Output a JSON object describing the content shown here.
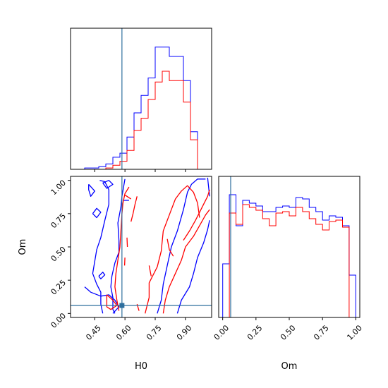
{
  "chart_data": {
    "type": "corner",
    "title": "",
    "parameters": [
      "H0",
      "Om"
    ],
    "truth": {
      "H0": 0.585,
      "Om": 0.06
    },
    "series_colors": [
      "#0000ff",
      "#ff0000"
    ],
    "truth_color": "#2e6f9e",
    "panels": [
      {
        "id": "hist-H0",
        "type": "step-histogram",
        "x_param": "H0",
        "xlim": [
          0.33,
          1.03
        ],
        "ylim": [
          0,
          105
        ],
        "bin_edges": [
          0.33,
          0.365,
          0.4,
          0.435,
          0.47,
          0.505,
          0.54,
          0.575,
          0.61,
          0.645,
          0.68,
          0.715,
          0.75,
          0.785,
          0.82,
          0.855,
          0.89,
          0.925,
          0.96,
          0.995,
          1.03
        ],
        "series": [
          {
            "color": "#0000ff",
            "values": [
              0,
              0,
              1,
              1,
              2,
              4,
              9,
              12,
              24,
              42,
              55,
              68,
              91,
              91,
              84,
              84,
              66,
              28,
              0,
              0
            ]
          },
          {
            "color": "#ff0000",
            "values": [
              0,
              0,
              0,
              0,
              0,
              1,
              3,
              6,
              14,
              29,
              38,
              52,
              65,
              73,
              66,
              66,
              50,
              22,
              0,
              0
            ]
          }
        ]
      },
      {
        "id": "contour-H0-Om",
        "type": "contour",
        "x_param": "H0",
        "y_param": "Om",
        "xlim": [
          0.33,
          1.03
        ],
        "ylim": [
          -0.03,
          1.03
        ],
        "x_ticks": [
          "0.45",
          "0.60",
          "0.75",
          "0.90"
        ],
        "x_tick_values": [
          0.45,
          0.6,
          0.75,
          0.9
        ],
        "y_ticks": [
          "0.00",
          "0.25",
          "0.50",
          "0.75",
          "1.00"
        ],
        "y_tick_values": [
          0.0,
          0.25,
          0.5,
          0.75,
          1.0
        ],
        "xlabel": "H0",
        "ylabel": "Om",
        "contours": [
          {
            "color": "#0000ff",
            "points": [
              [
                0.475,
                1.0
              ],
              [
                0.5,
                0.99
              ],
              [
                0.52,
                0.93
              ],
              [
                0.52,
                0.82
              ],
              [
                0.5,
                0.7
              ],
              [
                0.48,
                0.57
              ],
              [
                0.46,
                0.48
              ],
              [
                0.44,
                0.3
              ],
              [
                0.46,
                0.22
              ],
              [
                0.48,
                0.16
              ],
              [
                0.48,
                0.07
              ],
              [
                0.49,
                0.0
              ]
            ]
          },
          {
            "color": "#0000ff",
            "points": [
              [
                0.6,
                1.01
              ],
              [
                0.585,
                0.88
              ],
              [
                0.58,
                0.8
              ],
              [
                0.565,
                0.68
              ],
              [
                0.57,
                0.55
              ],
              [
                0.57,
                0.46
              ],
              [
                0.55,
                0.38
              ],
              [
                0.535,
                0.28
              ],
              [
                0.53,
                0.2
              ],
              [
                0.54,
                0.12
              ],
              [
                0.54,
                0.03
              ],
              [
                0.55,
                0.0
              ]
            ]
          },
          {
            "color": "#0000ff",
            "points": [
              [
                0.4,
                0.2
              ],
              [
                0.43,
                0.16
              ],
              [
                0.48,
                0.13
              ],
              [
                0.52,
                0.14
              ],
              [
                0.55,
                0.1
              ],
              [
                0.57,
                0.05
              ],
              [
                0.54,
                0.0
              ]
            ]
          },
          {
            "color": "#0000ff",
            "points": [
              [
                0.42,
                0.97
              ],
              [
                0.45,
                0.92
              ],
              [
                0.43,
                0.88
              ],
              [
                0.42,
                0.93
              ],
              [
                0.42,
                0.97
              ]
            ]
          },
          {
            "color": "#0000ff",
            "points": [
              [
                0.49,
                0.98
              ],
              [
                0.52,
                1.0
              ],
              [
                0.54,
                0.97
              ],
              [
                0.51,
                0.94
              ],
              [
                0.49,
                0.98
              ]
            ]
          },
          {
            "color": "#0000ff",
            "points": [
              [
                0.44,
                0.75
              ],
              [
                0.46,
                0.79
              ],
              [
                0.48,
                0.76
              ],
              [
                0.46,
                0.72
              ],
              [
                0.44,
                0.75
              ]
            ]
          },
          {
            "color": "#0000ff",
            "points": [
              [
                0.59,
                0.85
              ],
              [
                0.62,
                0.85
              ]
            ]
          },
          {
            "color": "#0000ff",
            "points": [
              [
                0.47,
                0.28
              ],
              [
                0.49,
                0.31
              ],
              [
                0.5,
                0.29
              ],
              [
                0.48,
                0.26
              ],
              [
                0.47,
                0.28
              ]
            ]
          },
          {
            "color": "#0000ff",
            "points": [
              [
                0.76,
                0.0
              ],
              [
                0.78,
                0.1
              ],
              [
                0.79,
                0.22
              ],
              [
                0.81,
                0.36
              ],
              [
                0.83,
                0.5
              ],
              [
                0.86,
                0.62
              ],
              [
                0.89,
                0.78
              ],
              [
                0.91,
                0.91
              ],
              [
                0.93,
                0.97
              ],
              [
                0.96,
                1.01
              ],
              [
                1.0,
                1.01
              ]
            ]
          },
          {
            "color": "#0000ff",
            "points": [
              [
                0.86,
                0.0
              ],
              [
                0.88,
                0.1
              ],
              [
                0.92,
                0.2
              ],
              [
                0.94,
                0.3
              ],
              [
                0.96,
                0.42
              ],
              [
                0.99,
                0.53
              ],
              [
                1.01,
                0.63
              ],
              [
                1.02,
                0.7
              ]
            ]
          },
          {
            "color": "#0000ff",
            "points": [
              [
                1.01,
                1.02
              ],
              [
                1.015,
                0.95
              ],
              [
                1.02,
                0.88
              ]
            ]
          },
          {
            "color": "#ff0000",
            "points": [
              [
                0.62,
                0.95
              ],
              [
                0.6,
                0.9
              ],
              [
                0.59,
                0.83
              ],
              [
                0.585,
                0.75
              ],
              [
                0.58,
                0.62
              ],
              [
                0.575,
                0.5
              ],
              [
                0.565,
                0.4
              ],
              [
                0.555,
                0.3
              ],
              [
                0.55,
                0.2
              ],
              [
                0.56,
                0.1
              ],
              [
                0.57,
                0.02
              ]
            ]
          },
          {
            "color": "#ff0000",
            "points": [
              [
                0.66,
                0.88
              ],
              [
                0.65,
                0.82
              ],
              [
                0.64,
                0.75
              ],
              [
                0.63,
                0.69
              ]
            ]
          },
          {
            "color": "#ff0000",
            "points": [
              [
                0.61,
                0.57
              ],
              [
                0.612,
                0.5
              ]
            ]
          },
          {
            "color": "#ff0000",
            "points": [
              [
                0.6,
                0.42
              ],
              [
                0.598,
                0.36
              ]
            ]
          },
          {
            "color": "#ff0000",
            "points": [
              [
                0.6,
                0.89
              ],
              [
                0.63,
                0.86
              ]
            ]
          },
          {
            "color": "#ff0000",
            "points": [
              [
                0.51,
                0.14
              ],
              [
                0.54,
                0.1
              ],
              [
                0.56,
                0.06
              ],
              [
                0.53,
                0.03
              ],
              [
                0.51,
                0.05
              ],
              [
                0.51,
                0.14
              ]
            ]
          },
          {
            "color": "#ff0000",
            "points": [
              [
                0.7,
                0.0
              ],
              [
                0.72,
                0.12
              ],
              [
                0.72,
                0.23
              ],
              [
                0.76,
                0.35
              ],
              [
                0.78,
                0.47
              ],
              [
                0.79,
                0.62
              ],
              [
                0.82,
                0.74
              ],
              [
                0.85,
                0.86
              ],
              [
                0.88,
                0.92
              ],
              [
                0.91,
                0.96
              ],
              [
                0.94,
                0.91
              ],
              [
                0.96,
                0.83
              ],
              [
                0.97,
                0.72
              ]
            ]
          },
          {
            "color": "#ff0000",
            "points": [
              [
                0.79,
                0.0
              ],
              [
                0.8,
                0.1
              ],
              [
                0.82,
                0.2
              ],
              [
                0.85,
                0.3
              ],
              [
                0.88,
                0.4
              ],
              [
                0.9,
                0.5
              ],
              [
                0.94,
                0.58
              ],
              [
                0.97,
                0.66
              ],
              [
                1.0,
                0.74
              ],
              [
                1.02,
                0.78
              ]
            ]
          },
          {
            "color": "#ff0000",
            "points": [
              [
                0.89,
                0.55
              ],
              [
                0.92,
                0.62
              ],
              [
                0.95,
                0.7
              ],
              [
                0.97,
                0.76
              ],
              [
                0.99,
                0.82
              ],
              [
                1.01,
                0.88
              ],
              [
                1.02,
                0.93
              ]
            ]
          },
          {
            "color": "#ff0000",
            "points": [
              [
                0.81,
                0.56
              ],
              [
                0.82,
                0.48
              ],
              [
                0.84,
                0.43
              ]
            ]
          },
          {
            "color": "#ff0000",
            "points": [
              [
                0.72,
                0.36
              ],
              [
                0.73,
                0.28
              ]
            ]
          },
          {
            "color": "#ff0000",
            "points": [
              [
                0.66,
                0.07
              ],
              [
                0.67,
                0.02
              ]
            ]
          }
        ]
      },
      {
        "id": "hist-Om",
        "type": "step-histogram",
        "x_param": "Om",
        "xlim": [
          -0.03,
          1.03
        ],
        "ylim": [
          0,
          100
        ],
        "x_ticks": [
          "0.00",
          "0.25",
          "0.50",
          "0.75",
          "1.00"
        ],
        "x_tick_values": [
          0.0,
          0.25,
          0.5,
          0.75,
          1.0
        ],
        "xlabel": "Om",
        "bin_edges": [
          0.0,
          0.05,
          0.1,
          0.15,
          0.2,
          0.25,
          0.3,
          0.35,
          0.4,
          0.45,
          0.5,
          0.55,
          0.6,
          0.65,
          0.7,
          0.75,
          0.8,
          0.85,
          0.9,
          0.95,
          1.0
        ],
        "series": [
          {
            "color": "#0000ff",
            "values": [
              38,
              87,
              65,
              83,
              81,
              79,
              75,
              75,
              78,
              79,
              78,
              85,
              84,
              78,
              75,
              69,
              72,
              71,
              65,
              30
            ]
          },
          {
            "color": "#ff0000",
            "values": [
              0,
              74,
              66,
              80,
              78,
              76,
              70,
              65,
              74,
              75,
              72,
              78,
              75,
              70,
              66,
              62,
              68,
              69,
              64,
              0
            ]
          }
        ]
      }
    ]
  }
}
